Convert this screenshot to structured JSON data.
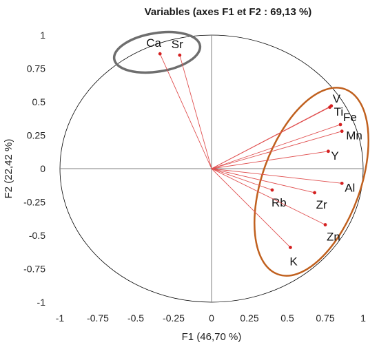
{
  "chart_data": {
    "type": "scatter",
    "title": "Variables (axes F1 et F2 : 69,13 %)",
    "xlabel": "F1 (46,70 %)",
    "ylabel": "F2 (22,42 %)",
    "xlim": [
      -1,
      1
    ],
    "ylim": [
      -1,
      1
    ],
    "x_ticks": [
      "-1",
      "-0.75",
      "-0.5",
      "-0.25",
      "0",
      "0.25",
      "0.5",
      "0.75",
      "1"
    ],
    "y_ticks": [
      "1",
      "0.75",
      "0.5",
      "0.25",
      "0",
      "-0.25",
      "-0.5",
      "-0.75",
      "-1"
    ],
    "grid": false,
    "points": [
      {
        "label": "Ca",
        "x": -0.34,
        "y": 0.86
      },
      {
        "label": "Sr",
        "x": -0.21,
        "y": 0.85
      },
      {
        "label": "V",
        "x": 0.79,
        "y": 0.47
      },
      {
        "label": "Ti",
        "x": 0.78,
        "y": 0.46
      },
      {
        "label": "Fe",
        "x": 0.85,
        "y": 0.33
      },
      {
        "label": "Mn",
        "x": 0.86,
        "y": 0.28
      },
      {
        "label": "Y",
        "x": 0.77,
        "y": 0.13
      },
      {
        "label": "Al",
        "x": 0.86,
        "y": -0.11
      },
      {
        "label": "Zr",
        "x": 0.68,
        "y": -0.18
      },
      {
        "label": "Rb",
        "x": 0.4,
        "y": -0.16
      },
      {
        "label": "Zn",
        "x": 0.75,
        "y": -0.42
      },
      {
        "label": "K",
        "x": 0.52,
        "y": -0.59
      }
    ],
    "colors": {
      "vector": "#e05050",
      "point": "#d42020",
      "circle": "#000000",
      "axes": "#7f7f7f",
      "group_ellipse_1": "#6e6e6e",
      "group_ellipse_2": "#c0601e"
    }
  }
}
